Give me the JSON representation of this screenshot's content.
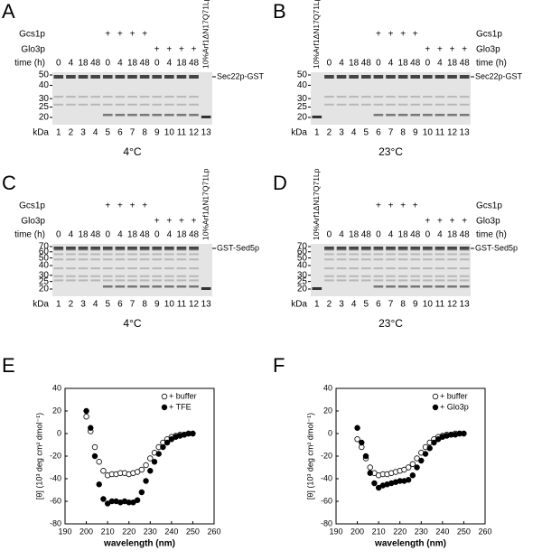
{
  "panels": [
    {
      "letter": "A",
      "rows": [
        {
          "label": "Gcs1p",
          "values": [
            "+",
            "+",
            "+",
            "+"
          ]
        },
        {
          "label": "Glo3p",
          "values": [
            "+",
            "+",
            "+",
            "+"
          ]
        },
        {
          "label": "time (h)",
          "values": [
            0,
            4,
            18,
            48,
            0,
            4,
            18,
            48,
            0,
            4,
            18,
            48
          ]
        }
      ],
      "control_label": "10%Arf1ΔN17Q71Lp",
      "markers": [
        50,
        40,
        30,
        25,
        20
      ],
      "band_label": "Sec22p-GST",
      "unit": "kDa",
      "lanes": [
        1,
        2,
        3,
        4,
        5,
        6,
        7,
        8,
        9,
        10,
        11,
        12,
        13
      ],
      "temperature": "4°C"
    },
    {
      "letter": "B",
      "rows": [
        {
          "label": "Gcs1p",
          "values": [
            "+",
            "+",
            "+",
            "+"
          ]
        },
        {
          "label": "Glo3p",
          "values": [
            "+",
            "+",
            "+",
            "+"
          ]
        },
        {
          "label": "time (h)",
          "values": [
            0,
            4,
            18,
            48,
            0,
            4,
            18,
            48,
            0,
            4,
            18,
            48
          ]
        }
      ],
      "control_label": "10%Arf1ΔN17Q71Lp",
      "markers": [
        50,
        40,
        30,
        25,
        20
      ],
      "band_label": "Sec22p-GST",
      "unit": "kDa",
      "lanes": [
        1,
        2,
        3,
        4,
        5,
        6,
        7,
        8,
        9,
        10,
        11,
        12,
        13
      ],
      "temperature": "23°C"
    },
    {
      "letter": "C",
      "rows": [
        {
          "label": "Gcs1p",
          "values": [
            "+",
            "+",
            "+",
            "+"
          ]
        },
        {
          "label": "Glo3p",
          "values": [
            "+",
            "+",
            "+",
            "+"
          ]
        },
        {
          "label": "time (h)",
          "values": [
            0,
            4,
            18,
            48,
            0,
            4,
            18,
            48,
            0,
            4,
            18,
            48
          ]
        }
      ],
      "control_label": "10%Arf1ΔN17Q71Lp",
      "markers": [
        70,
        60,
        50,
        40,
        30,
        25,
        20
      ],
      "band_label": "GST-Sed5p",
      "unit": "kDa",
      "lanes": [
        1,
        2,
        3,
        4,
        5,
        6,
        7,
        8,
        9,
        10,
        11,
        12,
        13
      ],
      "temperature": "4°C"
    },
    {
      "letter": "D",
      "rows": [
        {
          "label": "Gcs1p",
          "values": [
            "+",
            "+",
            "+",
            "+"
          ]
        },
        {
          "label": "Glo3p",
          "values": [
            "+",
            "+",
            "+",
            "+"
          ]
        },
        {
          "label": "time (h)",
          "values": [
            0,
            4,
            18,
            48,
            0,
            4,
            18,
            48,
            0,
            4,
            18,
            48
          ]
        }
      ],
      "control_label": "10%Arf1ΔN17Q71Lp",
      "markers": [
        70,
        60,
        50,
        40,
        30,
        25,
        20
      ],
      "band_label": "GST-Sed5p",
      "unit": "kDa",
      "lanes": [
        1,
        2,
        3,
        4,
        5,
        6,
        7,
        8,
        9,
        10,
        11,
        12,
        13
      ],
      "temperature": "23°C"
    }
  ],
  "chart_data": [
    {
      "type": "scatter",
      "label": "E",
      "xlabel": "wavelength (nm)",
      "ylabel": "[θ] (10³ deg cm² dmol⁻¹)",
      "x": [
        200,
        202,
        204,
        206,
        208,
        210,
        212,
        214,
        216,
        218,
        220,
        222,
        224,
        226,
        228,
        230,
        232,
        234,
        236,
        238,
        240,
        242,
        244,
        246,
        248,
        250
      ],
      "series": [
        {
          "name": "+ buffer",
          "color": "#000000",
          "marker": "open",
          "values": [
            15,
            2,
            -12,
            -25,
            -33,
            -37,
            -36,
            -36,
            -35,
            -35,
            -36,
            -35,
            -34,
            -32,
            -28,
            -22,
            -17,
            -12,
            -8,
            -5,
            -3,
            -2,
            -1,
            -1,
            0,
            0
          ]
        },
        {
          "name": "+ TFE",
          "color": "#000000",
          "marker": "filled",
          "values": [
            20,
            5,
            -20,
            -45,
            -58,
            -62,
            -60,
            -60,
            -61,
            -60,
            -61,
            -61,
            -59,
            -52,
            -42,
            -33,
            -25,
            -18,
            -12,
            -8,
            -5,
            -3,
            -2,
            -1,
            0,
            0
          ]
        }
      ],
      "xlim": [
        190,
        260
      ],
      "xticks": [
        190,
        200,
        210,
        220,
        230,
        240,
        250,
        260
      ],
      "ylim": [
        -80,
        40
      ],
      "yticks": [
        -80,
        -60,
        -40,
        -20,
        0,
        20,
        40
      ],
      "legend": "upper right"
    },
    {
      "type": "scatter",
      "label": "F",
      "xlabel": "wavelength (nm)",
      "ylabel": "[θ] (10³ deg cm² dmol⁻¹)",
      "x": [
        200,
        202,
        204,
        206,
        208,
        210,
        212,
        214,
        216,
        218,
        220,
        222,
        224,
        226,
        228,
        230,
        232,
        234,
        236,
        238,
        240,
        242,
        244,
        246,
        248,
        250
      ],
      "series": [
        {
          "name": "+ buffer",
          "color": "#000000",
          "marker": "open",
          "values": [
            -5,
            -12,
            -22,
            -30,
            -35,
            -37,
            -36,
            -36,
            -35,
            -34,
            -33,
            -32,
            -30,
            -27,
            -22,
            -17,
            -12,
            -8,
            -5,
            -3,
            -2,
            -1,
            -1,
            0,
            0,
            0
          ]
        },
        {
          "name": "+ Glo3p",
          "color": "#000000",
          "marker": "filled",
          "values": [
            5,
            -8,
            -20,
            -35,
            -44,
            -48,
            -46,
            -45,
            -44,
            -43,
            -42,
            -42,
            -41,
            -37,
            -30,
            -24,
            -18,
            -13,
            -8,
            -5,
            -3,
            -2,
            -1,
            -1,
            0,
            0
          ]
        }
      ],
      "xlim": [
        190,
        260
      ],
      "xticks": [
        190,
        200,
        210,
        220,
        230,
        240,
        250,
        260
      ],
      "ylim": [
        -80,
        40
      ],
      "yticks": [
        -80,
        -60,
        -40,
        -20,
        0,
        20,
        40
      ],
      "legend": "upper right"
    }
  ]
}
